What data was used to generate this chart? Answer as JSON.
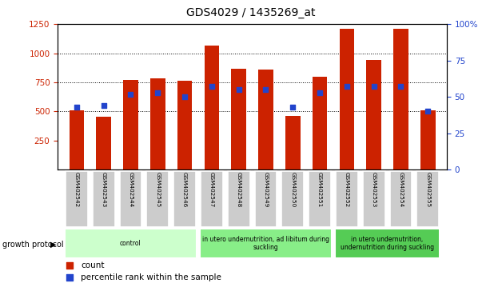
{
  "title": "GDS4029 / 1435269_at",
  "samples": [
    "GSM402542",
    "GSM402543",
    "GSM402544",
    "GSM402545",
    "GSM402546",
    "GSM402547",
    "GSM402548",
    "GSM402549",
    "GSM402550",
    "GSM402551",
    "GSM402552",
    "GSM402553",
    "GSM402554",
    "GSM402555"
  ],
  "counts": [
    510,
    455,
    770,
    785,
    765,
    1065,
    870,
    860,
    460,
    800,
    1210,
    940,
    1210,
    510
  ],
  "percentiles": [
    43,
    44,
    52,
    53,
    50,
    57,
    55,
    55,
    43,
    53,
    57,
    57,
    57,
    40
  ],
  "left_ylim": [
    0,
    1250
  ],
  "right_ylim": [
    0,
    100
  ],
  "left_yticks": [
    250,
    500,
    750,
    1000,
    1250
  ],
  "right_yticks": [
    0,
    25,
    50,
    75,
    100
  ],
  "right_yticklabels": [
    "0",
    "25",
    "50",
    "75",
    "100%"
  ],
  "bar_color": "#cc2200",
  "dot_color": "#2244cc",
  "group_ranges": [
    [
      0,
      4
    ],
    [
      5,
      9
    ],
    [
      10,
      13
    ]
  ],
  "group_labels": [
    "control",
    "in utero undernutrition, ad libitum during\nsuckling",
    "in utero undernutrition,\nundernutrition during suckling"
  ],
  "group_colors": [
    "#ccffcc",
    "#88ee88",
    "#55cc55"
  ],
  "growth_protocol_label": "growth protocol",
  "legend_count_label": "count",
  "legend_percentile_label": "percentile rank within the sample",
  "tick_label_color_left": "#cc2200",
  "tick_label_color_right": "#2244cc",
  "bar_width": 0.55
}
